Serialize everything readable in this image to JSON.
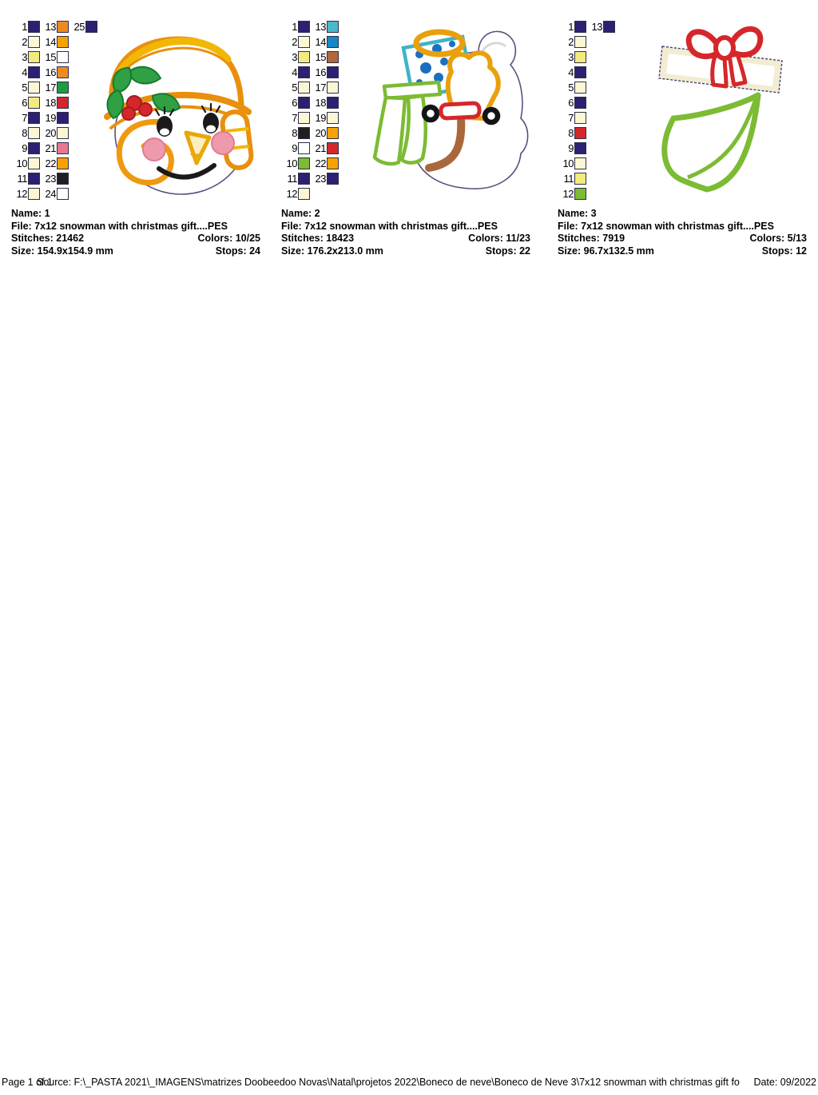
{
  "footer": {
    "page_label": "Page 1 of 1",
    "source_label": "Source: F:\\_PASTA 2021\\_IMAGENS\\matrizes Doobeedoo Novas\\Natal\\projetos 2022\\Boneco de neve\\Boneco de Neve 3\\7x12 snowman with christmas gift fo",
    "date_label": "Date: 09/2022"
  },
  "icon_names": [
    "snowman-face-preview",
    "snowman-body-gift-preview",
    "gift-and-tree-preview"
  ],
  "accent_colors": {
    "navy": "#2A2173",
    "cream": "#FBF6D3",
    "yellow": "#F2EB7E",
    "orange": "#EE8A1E",
    "amber": "#F6A300",
    "white": "#FFFFFF",
    "green": "#1F9C42",
    "red": "#D5272B",
    "pink": "#E97790",
    "black": "#1F1F1F",
    "teal": "#48B9C9",
    "blue": "#1787C6",
    "brown": "#B2673C",
    "light_green": "#7CBB33"
  },
  "designs": [
    {
      "name_label": "Name: 1",
      "file_label": "File: 7x12 snowman with christmas gift....PES",
      "stitches_label": "Stitches: 21462",
      "colors_label": "Colors: 10/25",
      "size_label": "Size: 154.9x154.9 mm",
      "stops_label": "Stops: 24",
      "palette": [
        {
          "num": 1,
          "color": "#2A2173"
        },
        {
          "num": 2,
          "color": "#FBF6D3"
        },
        {
          "num": 3,
          "color": "#F2EB7E"
        },
        {
          "num": 4,
          "color": "#2A2173"
        },
        {
          "num": 5,
          "color": "#FBF6D3"
        },
        {
          "num": 6,
          "color": "#F2EB7E"
        },
        {
          "num": 7,
          "color": "#2A2173"
        },
        {
          "num": 8,
          "color": "#FBF6D3"
        },
        {
          "num": 9,
          "color": "#2A2173"
        },
        {
          "num": 10,
          "color": "#FBF6D3"
        },
        {
          "num": 11,
          "color": "#2A2173"
        },
        {
          "num": 12,
          "color": "#FBF6D3"
        },
        {
          "num": 13,
          "color": "#EE8A1E"
        },
        {
          "num": 14,
          "color": "#F6A300"
        },
        {
          "num": 15,
          "color": "#FFFFFF"
        },
        {
          "num": 16,
          "color": "#EE8A1E"
        },
        {
          "num": 17,
          "color": "#1F9C42"
        },
        {
          "num": 18,
          "color": "#D5272B"
        },
        {
          "num": 19,
          "color": "#2A2173"
        },
        {
          "num": 20,
          "color": "#FBF6D3"
        },
        {
          "num": 21,
          "color": "#E97790"
        },
        {
          "num": 22,
          "color": "#F6A300"
        },
        {
          "num": 23,
          "color": "#1F1F1F"
        },
        {
          "num": 24,
          "color": "#FFFFFF"
        },
        {
          "num": 25,
          "color": "#2A2173"
        }
      ]
    },
    {
      "name_label": "Name: 2",
      "file_label": "File: 7x12 snowman with christmas gift....PES",
      "stitches_label": "Stitches: 18423",
      "colors_label": "Colors: 11/23",
      "size_label": "Size: 176.2x213.0 mm",
      "stops_label": "Stops: 22",
      "palette": [
        {
          "num": 1,
          "color": "#2A2173"
        },
        {
          "num": 2,
          "color": "#FBF6D3"
        },
        {
          "num": 3,
          "color": "#F2EB7E"
        },
        {
          "num": 4,
          "color": "#2A2173"
        },
        {
          "num": 5,
          "color": "#FBF6D3"
        },
        {
          "num": 6,
          "color": "#2A2173"
        },
        {
          "num": 7,
          "color": "#FBF6D3"
        },
        {
          "num": 8,
          "color": "#1F1F1F"
        },
        {
          "num": 9,
          "color": "#FFFFFF"
        },
        {
          "num": 10,
          "color": "#7CBB33"
        },
        {
          "num": 11,
          "color": "#2A2173"
        },
        {
          "num": 12,
          "color": "#FBF6D3"
        },
        {
          "num": 13,
          "color": "#48B9C9"
        },
        {
          "num": 14,
          "color": "#1787C6"
        },
        {
          "num": 15,
          "color": "#B2673C"
        },
        {
          "num": 16,
          "color": "#2A2173"
        },
        {
          "num": 17,
          "color": "#FBF6D3"
        },
        {
          "num": 18,
          "color": "#2A2173"
        },
        {
          "num": 19,
          "color": "#FBF6D3"
        },
        {
          "num": 20,
          "color": "#F6A300"
        },
        {
          "num": 21,
          "color": "#D5272B"
        },
        {
          "num": 22,
          "color": "#F6A300"
        },
        {
          "num": 23,
          "color": "#2A2173"
        }
      ]
    },
    {
      "name_label": "Name: 3",
      "file_label": "File: 7x12 snowman with christmas gift....PES",
      "stitches_label": "Stitches: 7919",
      "colors_label": "Colors: 5/13",
      "size_label": "Size: 96.7x132.5 mm",
      "stops_label": "Stops: 12",
      "palette": [
        {
          "num": 1,
          "color": "#2A2173"
        },
        {
          "num": 2,
          "color": "#FBF6D3"
        },
        {
          "num": 3,
          "color": "#F2EB7E"
        },
        {
          "num": 4,
          "color": "#2A2173"
        },
        {
          "num": 5,
          "color": "#FBF6D3"
        },
        {
          "num": 6,
          "color": "#2A2173"
        },
        {
          "num": 7,
          "color": "#FBF6D3"
        },
        {
          "num": 8,
          "color": "#D5272B"
        },
        {
          "num": 9,
          "color": "#2A2173"
        },
        {
          "num": 10,
          "color": "#FBF6D3"
        },
        {
          "num": 11,
          "color": "#F2EB7E"
        },
        {
          "num": 12,
          "color": "#7CBB33"
        },
        {
          "num": 13,
          "color": "#2A2173"
        }
      ]
    }
  ]
}
